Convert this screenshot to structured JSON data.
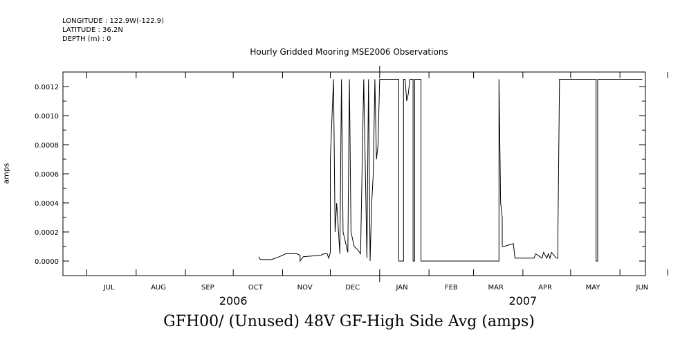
{
  "header": {
    "longitude": "LONGITUDE : 122.9W(-122.9)",
    "latitude": "LATITUDE : 36.2N",
    "depth": "DEPTH (m) : 0"
  },
  "chart_data": {
    "type": "line",
    "title": "Hourly Gridded Mooring MSE2006 Observations",
    "bottom_title": "GFH00/ (Unused) 48V GF-High Side Avg (amps)",
    "ylabel": "amps",
    "xlabel": "",
    "x_ticks": [
      "JUL",
      "AUG",
      "SEP",
      "OCT",
      "NOV",
      "DEC",
      "JAN",
      "FEB",
      "MAR",
      "APR",
      "MAY",
      "JUN"
    ],
    "years": [
      "2006",
      "2007"
    ],
    "y_ticks": [
      "0.0000",
      "0.0002",
      "0.0004",
      "0.0006",
      "0.0008",
      "0.0010",
      "0.0012"
    ],
    "ylim": [
      -0.0001,
      0.0013
    ],
    "xlim": [
      "2006-06-16",
      "2007-06-17"
    ],
    "series": [
      {
        "x": [
          "2006-10-17",
          "2006-10-18",
          "2006-10-25",
          "2006-10-30",
          "2006-11-03",
          "2006-11-10",
          "2006-11-12",
          "2006-11-12",
          "2006-11-14",
          "2006-11-25",
          "2006-11-27",
          "2006-11-29",
          "2006-11-30",
          "2006-12-01",
          "2006-12-01",
          "2006-12-03",
          "2006-12-04",
          "2006-12-05",
          "2006-12-07",
          "2006-12-08",
          "2006-12-09",
          "2006-12-12",
          "2006-12-13",
          "2006-12-14",
          "2006-12-15",
          "2006-12-16",
          "2006-12-18",
          "2006-12-20",
          "2006-12-22",
          "2006-12-24",
          "2006-12-25",
          "2006-12-26",
          "2006-12-27",
          "2006-12-28",
          "2006-12-29",
          "2006-12-30",
          "2006-12-31",
          "2007-01-01",
          "2007-01-13",
          "2007-01-13",
          "2007-01-16",
          "2007-01-16",
          "2007-01-17",
          "2007-01-18",
          "2007-01-19",
          "2007-01-20",
          "2007-01-20",
          "2007-01-22",
          "2007-01-22",
          "2007-01-23",
          "2007-01-23",
          "2007-01-24",
          "2007-01-25",
          "2007-01-27",
          "2007-01-27",
          "2007-01-29",
          "2007-01-29",
          "2007-03-17",
          "2007-03-17",
          "2007-03-18",
          "2007-03-19",
          "2007-03-19",
          "2007-03-20",
          "2007-03-26",
          "2007-03-27",
          "2007-04-08",
          "2007-04-09",
          "2007-04-13",
          "2007-04-14",
          "2007-04-16",
          "2007-04-17",
          "2007-04-18",
          "2007-04-19",
          "2007-04-22",
          "2007-04-23",
          "2007-04-23",
          "2007-04-24",
          "2007-04-24",
          "2007-05-17",
          "2007-05-17",
          "2007-05-18",
          "2007-05-18",
          "2007-06-15"
        ],
        "y": [
          3e-05,
          1e-05,
          1e-05,
          3e-05,
          5e-05,
          5e-05,
          4e-05,
          0.0,
          3e-05,
          4e-05,
          5e-05,
          5e-05,
          2e-05,
          6e-05,
          0.0007,
          0.00125,
          0.0002,
          0.0004,
          5e-05,
          0.00125,
          0.0002,
          6e-05,
          0.00125,
          0.0002,
          0.00015,
          0.0001,
          8e-05,
          5e-05,
          0.00125,
          2e-05,
          0.00125,
          0.0,
          0.0004,
          0.0006,
          0.00125,
          0.0007,
          0.0008,
          0.00125,
          0.00125,
          0.0,
          0.0,
          0.00125,
          0.00125,
          0.0011,
          0.00115,
          0.00125,
          0.00125,
          0.00125,
          0.0,
          0.0,
          0.00125,
          0.00125,
          0.00125,
          0.00125,
          0.0,
          0.0,
          0.0,
          0.0,
          0.00125,
          0.0004,
          0.0003,
          0.0001,
          0.0001,
          0.00012,
          2e-05,
          2e-05,
          5e-05,
          2e-05,
          6e-05,
          2e-05,
          5e-05,
          2e-05,
          6e-05,
          2e-05,
          2e-05,
          0.00018,
          0.00125,
          0.00125,
          0.00125,
          0.0,
          0.0,
          0.00125,
          0.00125
        ]
      }
    ]
  }
}
